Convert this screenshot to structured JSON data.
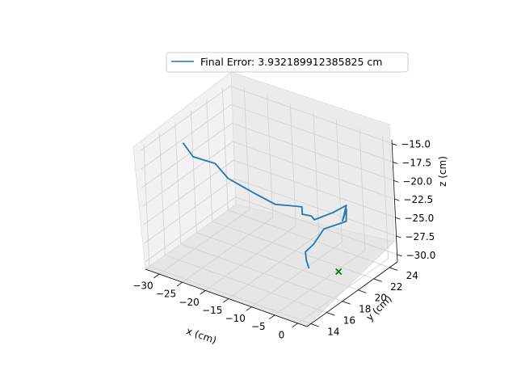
{
  "chart_data": {
    "type": "line",
    "projection": "3d",
    "legend": {
      "placement": "top-center",
      "entries": [
        "Final Error: 3.932189912385825 cm"
      ]
    },
    "xlabel": "x (cm)",
    "ylabel": "y (cm)",
    "zlabel": "z (cm)",
    "x_ticks": [
      "−30",
      "−25",
      "−20",
      "−15",
      "−10",
      "−5",
      "0"
    ],
    "y_ticks": [
      "14",
      "16",
      "18",
      "20",
      "22",
      "24"
    ],
    "z_ticks": [
      "−30.0",
      "−27.5",
      "−25.0",
      "−22.5",
      "−20.0",
      "−17.5",
      "−15.0"
    ],
    "xlim": [
      -33,
      2
    ],
    "ylim": [
      13.5,
      25
    ],
    "zlim": [
      -31,
      -14.5
    ],
    "grid": true,
    "series": [
      {
        "name": "Final Error: 3.932189912385825 cm",
        "color": "#1f77b4",
        "points": [
          [
            -31.5,
            18.0,
            -17.0
          ],
          [
            -30.3,
            18.5,
            -19.0
          ],
          [
            -28.5,
            19.0,
            -19.5
          ],
          [
            -27.3,
            19.5,
            -20.0
          ],
          [
            -25.5,
            20.0,
            -22.0
          ],
          [
            -23.3,
            20.5,
            -23.0
          ],
          [
            -21.0,
            21.0,
            -24.0
          ],
          [
            -18.0,
            21.5,
            -25.0
          ],
          [
            -15.5,
            22.0,
            -25.0
          ],
          [
            -14.0,
            22.5,
            -25.2
          ],
          [
            -14.0,
            22.5,
            -26.2
          ],
          [
            -12.0,
            22.5,
            -26.0
          ],
          [
            -10.5,
            22.0,
            -25.8
          ],
          [
            -8.0,
            23.0,
            -25.0
          ],
          [
            -6.0,
            23.5,
            -24.0
          ],
          [
            -7.0,
            23.5,
            -26.3
          ],
          [
            -6.0,
            23.5,
            -24.5
          ],
          [
            -6.2,
            23.5,
            -26.2
          ],
          [
            -8.5,
            22.0,
            -26.6
          ],
          [
            -10.0,
            21.5,
            -28.6
          ],
          [
            -11.0,
            21.0,
            -29.5
          ],
          [
            -10.0,
            20.5,
            -30.0
          ],
          [
            -9.5,
            20.5,
            -31.0
          ]
        ]
      }
    ],
    "target": {
      "marker": "x",
      "color": "#008000",
      "point": [
        -3.0,
        20.5,
        -30.0
      ]
    }
  }
}
